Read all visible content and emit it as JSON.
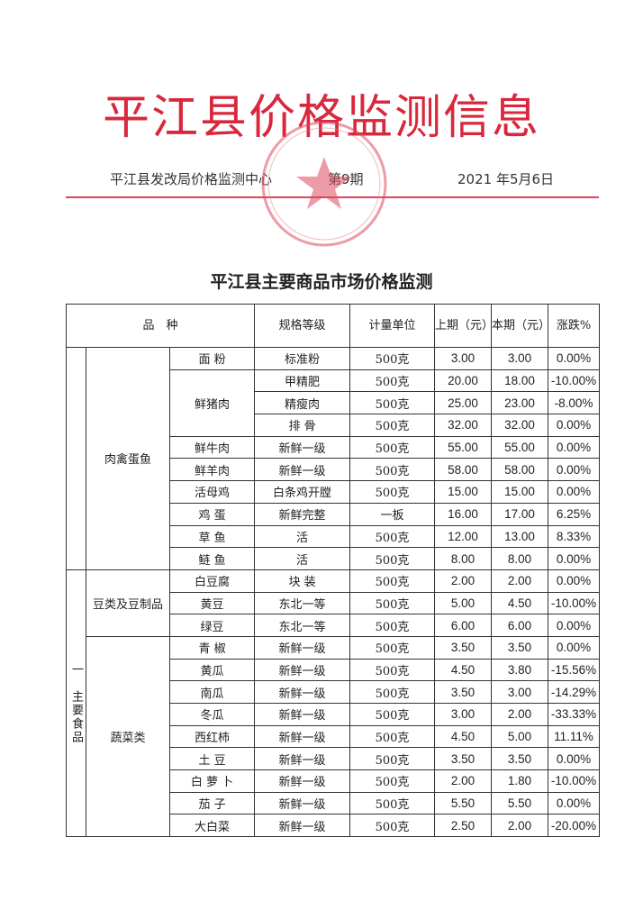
{
  "header": {
    "title": "平江县价格监测信息",
    "issuer": "平江县发改局价格监测中心",
    "issue": "第9期",
    "date": "2021 年5月6日",
    "title_color": "#d9283e"
  },
  "table": {
    "title": "平江县主要商品市场价格监测",
    "columns": {
      "variety": "品　种",
      "spec": "规格等级",
      "unit": "计量单位",
      "prev": "上期（元）",
      "cur": "本期（元）",
      "change": "涨跌%"
    },
    "section": "一　主要食品",
    "groups": [
      {
        "category": "肉禽蛋鱼",
        "rows": [
          {
            "item": "面 粉",
            "spec": "标准粉",
            "unit": "500克",
            "prev": "3.00",
            "cur": "3.00",
            "change": "0.00%"
          },
          {
            "item": "鲜猪肉",
            "spec": "甲精肥",
            "unit": "500克",
            "prev": "20.00",
            "cur": "18.00",
            "change": "-10.00%"
          },
          {
            "item": "",
            "spec": "精瘦肉",
            "unit": "500克",
            "prev": "25.00",
            "cur": "23.00",
            "change": "-8.00%"
          },
          {
            "item": "",
            "spec": "排 骨",
            "unit": "500克",
            "prev": "32.00",
            "cur": "32.00",
            "change": "0.00%"
          },
          {
            "item": "鲜牛肉",
            "spec": "新鲜一级",
            "unit": "500克",
            "prev": "55.00",
            "cur": "55.00",
            "change": "0.00%"
          },
          {
            "item": "鲜羊肉",
            "spec": "新鲜一级",
            "unit": "500克",
            "prev": "58.00",
            "cur": "58.00",
            "change": "0.00%"
          },
          {
            "item": "活母鸡",
            "spec": "白条鸡开膛",
            "unit": "500克",
            "prev": "15.00",
            "cur": "15.00",
            "change": "0.00%"
          },
          {
            "item": "鸡 蛋",
            "spec": "新鲜完整",
            "unit": "一板",
            "prev": "16.00",
            "cur": "17.00",
            "change": "6.25%"
          },
          {
            "item": "草 鱼",
            "spec": "活",
            "unit": "500克",
            "prev": "12.00",
            "cur": "13.00",
            "change": "8.33%"
          },
          {
            "item": "鲢 鱼",
            "spec": "活",
            "unit": "500克",
            "prev": "8.00",
            "cur": "8.00",
            "change": "0.00%"
          }
        ]
      },
      {
        "category": "豆类及豆制品",
        "rows": [
          {
            "item": "白豆腐",
            "spec": "块 装",
            "unit": "500克",
            "prev": "2.00",
            "cur": "2.00",
            "change": "0.00%"
          },
          {
            "item": "黄豆",
            "spec": "东北一等",
            "unit": "500克",
            "prev": "5.00",
            "cur": "4.50",
            "change": "-10.00%"
          },
          {
            "item": "绿豆",
            "spec": "东北一等",
            "unit": "500克",
            "prev": "6.00",
            "cur": "6.00",
            "change": "0.00%"
          }
        ]
      },
      {
        "category": "蔬菜类",
        "rows": [
          {
            "item": "青 椒",
            "spec": "新鲜一级",
            "unit": "500克",
            "prev": "3.50",
            "cur": "3.50",
            "change": "0.00%"
          },
          {
            "item": "黄瓜",
            "spec": "新鲜一级",
            "unit": "500克",
            "prev": "4.50",
            "cur": "3.80",
            "change": "-15.56%"
          },
          {
            "item": "南瓜",
            "spec": "新鲜一级",
            "unit": "500克",
            "prev": "3.50",
            "cur": "3.00",
            "change": "-14.29%"
          },
          {
            "item": "冬瓜",
            "spec": "新鲜一级",
            "unit": "500克",
            "prev": "3.00",
            "cur": "2.00",
            "change": "-33.33%"
          },
          {
            "item": "西红柿",
            "spec": "新鲜一级",
            "unit": "500克",
            "prev": "4.50",
            "cur": "5.00",
            "change": "11.11%"
          },
          {
            "item": "土 豆",
            "spec": "新鲜一级",
            "unit": "500克",
            "prev": "3.50",
            "cur": "3.50",
            "change": "0.00%"
          },
          {
            "item": "白 萝 卜",
            "spec": "新鲜一级",
            "unit": "500克",
            "prev": "2.00",
            "cur": "1.80",
            "change": "-10.00%"
          },
          {
            "item": "茄 子",
            "spec": "新鲜一级",
            "unit": "500克",
            "prev": "5.50",
            "cur": "5.50",
            "change": "0.00%"
          },
          {
            "item": "大白菜",
            "spec": "新鲜一级",
            "unit": "500克",
            "prev": "2.50",
            "cur": "2.00",
            "change": "-20.00%"
          }
        ]
      }
    ]
  }
}
